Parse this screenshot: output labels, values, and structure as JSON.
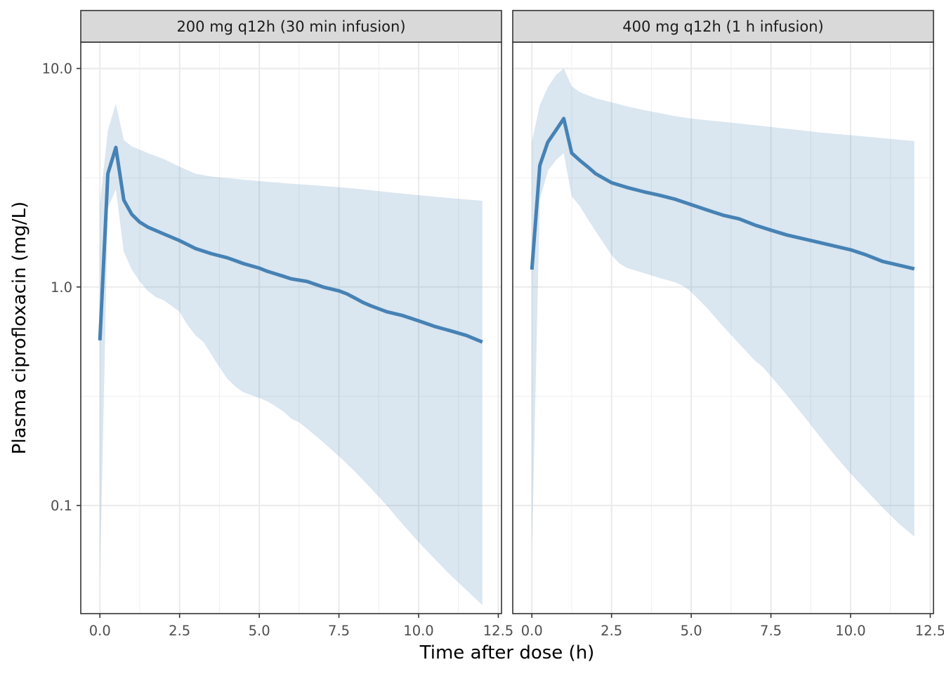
{
  "chart_data": {
    "type": "line",
    "xlabel": "Time after dose (h)",
    "ylabel": "Plasma ciprofloxacin (mg/L)",
    "y_scale": "log10",
    "xlim": [
      -0.6,
      12.6
    ],
    "ylim": [
      0.032,
      13.2
    ],
    "x_ticks": [
      0.0,
      2.5,
      5.0,
      7.5,
      10.0,
      12.5
    ],
    "x_tick_labels": [
      "0.0",
      "2.5",
      "5.0",
      "7.5",
      "10.0",
      "12.5"
    ],
    "y_ticks": [
      0.1,
      1.0,
      10.0
    ],
    "y_tick_labels": [
      "0.1",
      "1.0",
      "10.0"
    ],
    "grid": true,
    "line_color": "#4682B4",
    "ribbon_color": "#4682B4",
    "strip_fill": "#D9D9D9",
    "panels": [
      {
        "strip": "200 mg q12h (30 min infusion)",
        "median": {
          "x": [
            0,
            0.25,
            0.5,
            0.75,
            1.0,
            1.25,
            1.5,
            2.0,
            2.5,
            3.0,
            3.5,
            4.0,
            4.25,
            4.5,
            5.0,
            5.25,
            5.5,
            5.75,
            6.0,
            6.5,
            7.0,
            7.5,
            7.75,
            8.0,
            8.25,
            8.5,
            9.0,
            9.5,
            10.0,
            10.5,
            11.0,
            11.5,
            12.0
          ],
          "y": [
            0.57,
            3.3,
            4.35,
            2.5,
            2.15,
            1.98,
            1.88,
            1.75,
            1.63,
            1.5,
            1.42,
            1.36,
            1.32,
            1.28,
            1.22,
            1.18,
            1.15,
            1.12,
            1.09,
            1.06,
            1.0,
            0.96,
            0.93,
            0.89,
            0.85,
            0.82,
            0.77,
            0.74,
            0.7,
            0.66,
            0.63,
            0.6,
            0.56
          ]
        },
        "band_upper": {
          "x": [
            0,
            0.25,
            0.5,
            0.75,
            1.0,
            1.25,
            1.5,
            2.0,
            2.5,
            3.0,
            3.5,
            4.0,
            4.5,
            5.0,
            6.0,
            7.0,
            8.0,
            9.0,
            10.0,
            11.0,
            12.0
          ],
          "y": [
            2.4,
            5.2,
            6.9,
            4.7,
            4.4,
            4.25,
            4.1,
            3.85,
            3.55,
            3.3,
            3.2,
            3.15,
            3.1,
            3.05,
            2.97,
            2.9,
            2.82,
            2.72,
            2.63,
            2.55,
            2.48
          ]
        },
        "band_lower": {
          "x": [
            0,
            0.25,
            0.5,
            0.75,
            1.0,
            1.25,
            1.5,
            1.75,
            2.0,
            2.25,
            2.5,
            2.75,
            3.0,
            3.25,
            3.5,
            3.75,
            4.0,
            4.25,
            4.5,
            5.0,
            5.25,
            5.5,
            5.75,
            6.0,
            6.25,
            6.5,
            7.0,
            7.5,
            8.0,
            8.5,
            9.0,
            9.5,
            10.0,
            10.5,
            11.0,
            11.5,
            12.0
          ],
          "y": [
            0.045,
            2.3,
            2.8,
            1.45,
            1.2,
            1.06,
            0.96,
            0.9,
            0.87,
            0.82,
            0.77,
            0.67,
            0.6,
            0.56,
            0.49,
            0.43,
            0.38,
            0.35,
            0.33,
            0.31,
            0.3,
            0.285,
            0.27,
            0.25,
            0.24,
            0.225,
            0.195,
            0.168,
            0.143,
            0.12,
            0.1,
            0.082,
            0.068,
            0.057,
            0.048,
            0.041,
            0.035
          ]
        }
      },
      {
        "strip": "400 mg q12h (1 h infusion)",
        "median": {
          "x": [
            0,
            0.25,
            0.5,
            0.75,
            1.0,
            1.25,
            1.5,
            1.75,
            2.0,
            2.5,
            3.0,
            3.5,
            4.0,
            4.5,
            5.0,
            5.5,
            6.0,
            6.5,
            7.0,
            7.5,
            8.0,
            9.0,
            10.0,
            10.5,
            11.0,
            11.5,
            12.0
          ],
          "y": [
            1.2,
            3.6,
            4.6,
            5.2,
            5.9,
            4.1,
            3.8,
            3.55,
            3.3,
            3.0,
            2.85,
            2.73,
            2.63,
            2.52,
            2.38,
            2.25,
            2.13,
            2.05,
            1.92,
            1.82,
            1.73,
            1.6,
            1.48,
            1.4,
            1.31,
            1.26,
            1.21
          ]
        },
        "band_upper": {
          "x": [
            0,
            0.25,
            0.5,
            0.75,
            1.0,
            1.25,
            1.5,
            2.0,
            2.5,
            3.0,
            3.5,
            4.0,
            4.5,
            5.0,
            6.0,
            7.0,
            8.0,
            9.0,
            10.0,
            11.0,
            12.0
          ],
          "y": [
            4.6,
            6.8,
            8.2,
            9.3,
            10.0,
            8.3,
            7.8,
            7.3,
            7.0,
            6.7,
            6.45,
            6.25,
            6.05,
            5.9,
            5.7,
            5.5,
            5.3,
            5.1,
            4.95,
            4.8,
            4.65
          ]
        },
        "band_lower": {
          "x": [
            0,
            0.25,
            0.5,
            0.75,
            1.0,
            1.25,
            1.5,
            1.75,
            2.0,
            2.5,
            2.75,
            3.0,
            3.5,
            4.0,
            4.5,
            4.75,
            5.0,
            5.5,
            6.0,
            6.5,
            7.0,
            7.25,
            7.5,
            8.0,
            8.5,
            9.0,
            9.5,
            10.0,
            10.5,
            11.0,
            11.5,
            12.0
          ],
          "y": [
            0.06,
            2.5,
            3.4,
            3.8,
            4.1,
            2.6,
            2.35,
            2.05,
            1.8,
            1.4,
            1.28,
            1.22,
            1.16,
            1.1,
            1.05,
            1.01,
            0.95,
            0.8,
            0.66,
            0.55,
            0.46,
            0.43,
            0.39,
            0.32,
            0.26,
            0.21,
            0.17,
            0.14,
            0.117,
            0.098,
            0.083,
            0.072
          ]
        }
      }
    ]
  }
}
